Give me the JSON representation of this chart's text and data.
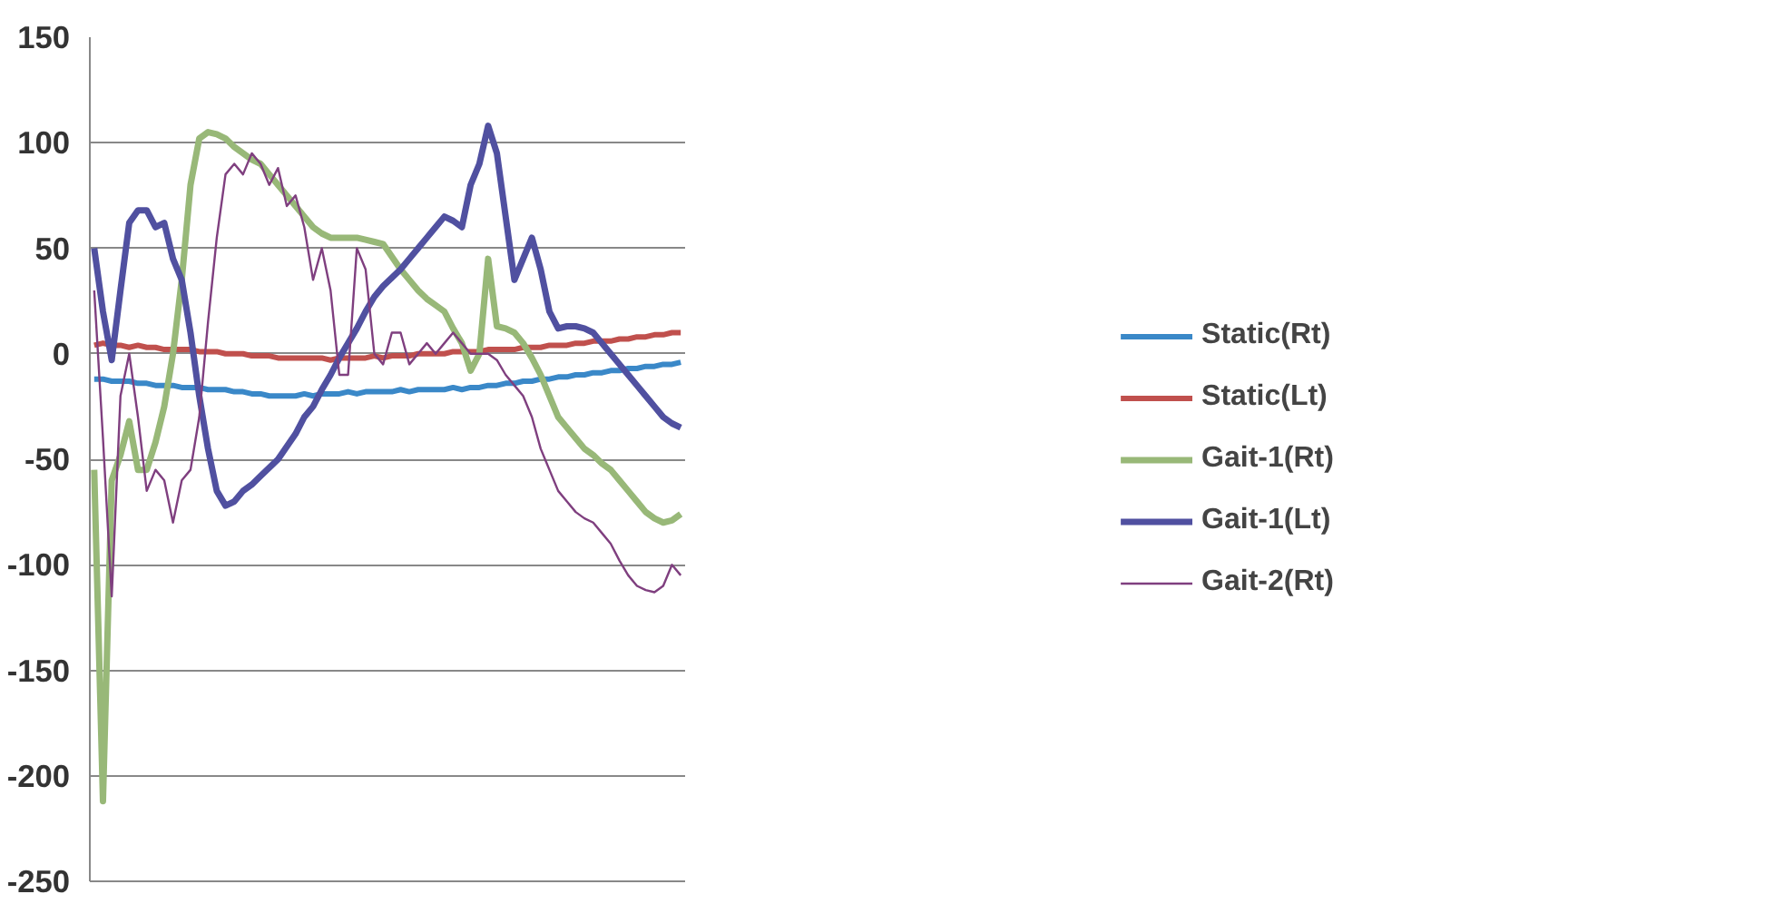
{
  "chart_data": {
    "type": "line",
    "categories": [
      null,
      null,
      null,
      null,
      null,
      null,
      null,
      null,
      null,
      null,
      null,
      null,
      null,
      null,
      null,
      null,
      null,
      null,
      null,
      null,
      null,
      null,
      null,
      null,
      null,
      null,
      null,
      null,
      null,
      null,
      null,
      null,
      null,
      null,
      null,
      null,
      null,
      null,
      null,
      null,
      null,
      null,
      null,
      null,
      null,
      null,
      null,
      null,
      null,
      null,
      null,
      null,
      null,
      null,
      null,
      null,
      null,
      null,
      null,
      null,
      null,
      null,
      null,
      null,
      null,
      null,
      null,
      null
    ],
    "ylim": [
      -250,
      150
    ],
    "yticks": [
      -250,
      -200,
      -150,
      -100,
      -50,
      0,
      50,
      100,
      150
    ],
    "grid": "y",
    "legend": "right",
    "tick_labels": "y",
    "marker": "none",
    "line_style": "solid",
    "series": [
      {
        "name": "Static(Rt)",
        "color": "#3a88c8",
        "values": [
          -12,
          -12,
          -13,
          -13,
          -13,
          -14,
          -14,
          -15,
          -15,
          -15,
          -16,
          -16,
          -16,
          -17,
          -17,
          -17,
          -18,
          -18,
          -19,
          -19,
          -20,
          -20,
          -20,
          -20,
          -19,
          -20,
          -19,
          -19,
          -19,
          -18,
          -19,
          -18,
          -18,
          -18,
          -18,
          -17,
          -18,
          -17,
          -17,
          -17,
          -17,
          -16,
          -17,
          -16,
          -16,
          -15,
          -15,
          -14,
          -14,
          -13,
          -13,
          -12,
          -12,
          -11,
          -11,
          -10,
          -10,
          -9,
          -9,
          -8,
          -8,
          -7,
          -7,
          -6,
          -6,
          -5,
          -5,
          -4
        ]
      },
      {
        "name": "Static(Lt)",
        "color": "#c0504d",
        "values": [
          4,
          5,
          4,
          4,
          3,
          4,
          3,
          3,
          2,
          2,
          2,
          2,
          1,
          1,
          1,
          0,
          0,
          0,
          -1,
          -1,
          -1,
          -2,
          -2,
          -2,
          -2,
          -2,
          -2,
          -3,
          -2,
          -2,
          -2,
          -2,
          -1,
          -2,
          -1,
          -1,
          -1,
          0,
          0,
          0,
          0,
          1,
          1,
          1,
          1,
          2,
          2,
          2,
          2,
          3,
          3,
          3,
          4,
          4,
          4,
          5,
          5,
          6,
          6,
          6,
          7,
          7,
          8,
          8,
          9,
          9,
          10,
          10
        ]
      },
      {
        "name": "Gait-1(Rt)",
        "color": "#98b878",
        "values": [
          -55,
          -212,
          -60,
          -48,
          -32,
          -55,
          -55,
          -42,
          -25,
          0,
          35,
          80,
          102,
          105,
          104,
          102,
          98,
          95,
          92,
          90,
          85,
          80,
          75,
          70,
          65,
          60,
          57,
          55,
          55,
          55,
          55,
          54,
          53,
          52,
          46,
          40,
          35,
          30,
          26,
          23,
          20,
          12,
          5,
          -8,
          0,
          45,
          13,
          12,
          10,
          5,
          -2,
          -10,
          -20,
          -30,
          -35,
          -40,
          -45,
          -48,
          -52,
          -55,
          -60,
          -65,
          -70,
          -75,
          -78,
          -80,
          -79,
          -76
        ]
      },
      {
        "name": "Gait-1(Lt)",
        "color": "#5050a0",
        "values": [
          50,
          20,
          -3,
          30,
          62,
          68,
          68,
          60,
          62,
          45,
          35,
          10,
          -20,
          -45,
          -65,
          -72,
          -70,
          -65,
          -62,
          -58,
          -54,
          -50,
          -44,
          -38,
          -30,
          -25,
          -17,
          -10,
          -2,
          5,
          12,
          20,
          27,
          32,
          36,
          40,
          45,
          50,
          55,
          60,
          65,
          63,
          60,
          80,
          90,
          108,
          95,
          65,
          35,
          45,
          55,
          40,
          20,
          12,
          13,
          13,
          12,
          10,
          5,
          0,
          -5,
          -10,
          -15,
          -20,
          -25,
          -30,
          -33,
          -35
        ]
      },
      {
        "name": "Gait-2(Rt)",
        "color": "#7f3f7f",
        "values": [
          30,
          -40,
          -115,
          -20,
          0,
          -30,
          -65,
          -55,
          -60,
          -80,
          -60,
          -55,
          -30,
          15,
          55,
          85,
          90,
          85,
          95,
          90,
          80,
          88,
          70,
          75,
          60,
          35,
          50,
          30,
          -10,
          -10,
          50,
          40,
          0,
          -5,
          10,
          10,
          -5,
          0,
          5,
          0,
          5,
          10,
          5,
          0,
          0,
          0,
          -3,
          -10,
          -15,
          -20,
          -30,
          -45,
          -55,
          -65,
          -70,
          -75,
          -78,
          -80,
          -85,
          -90,
          -98,
          -105,
          -110,
          -112,
          -113,
          -110,
          -100,
          -105
        ]
      }
    ]
  }
}
